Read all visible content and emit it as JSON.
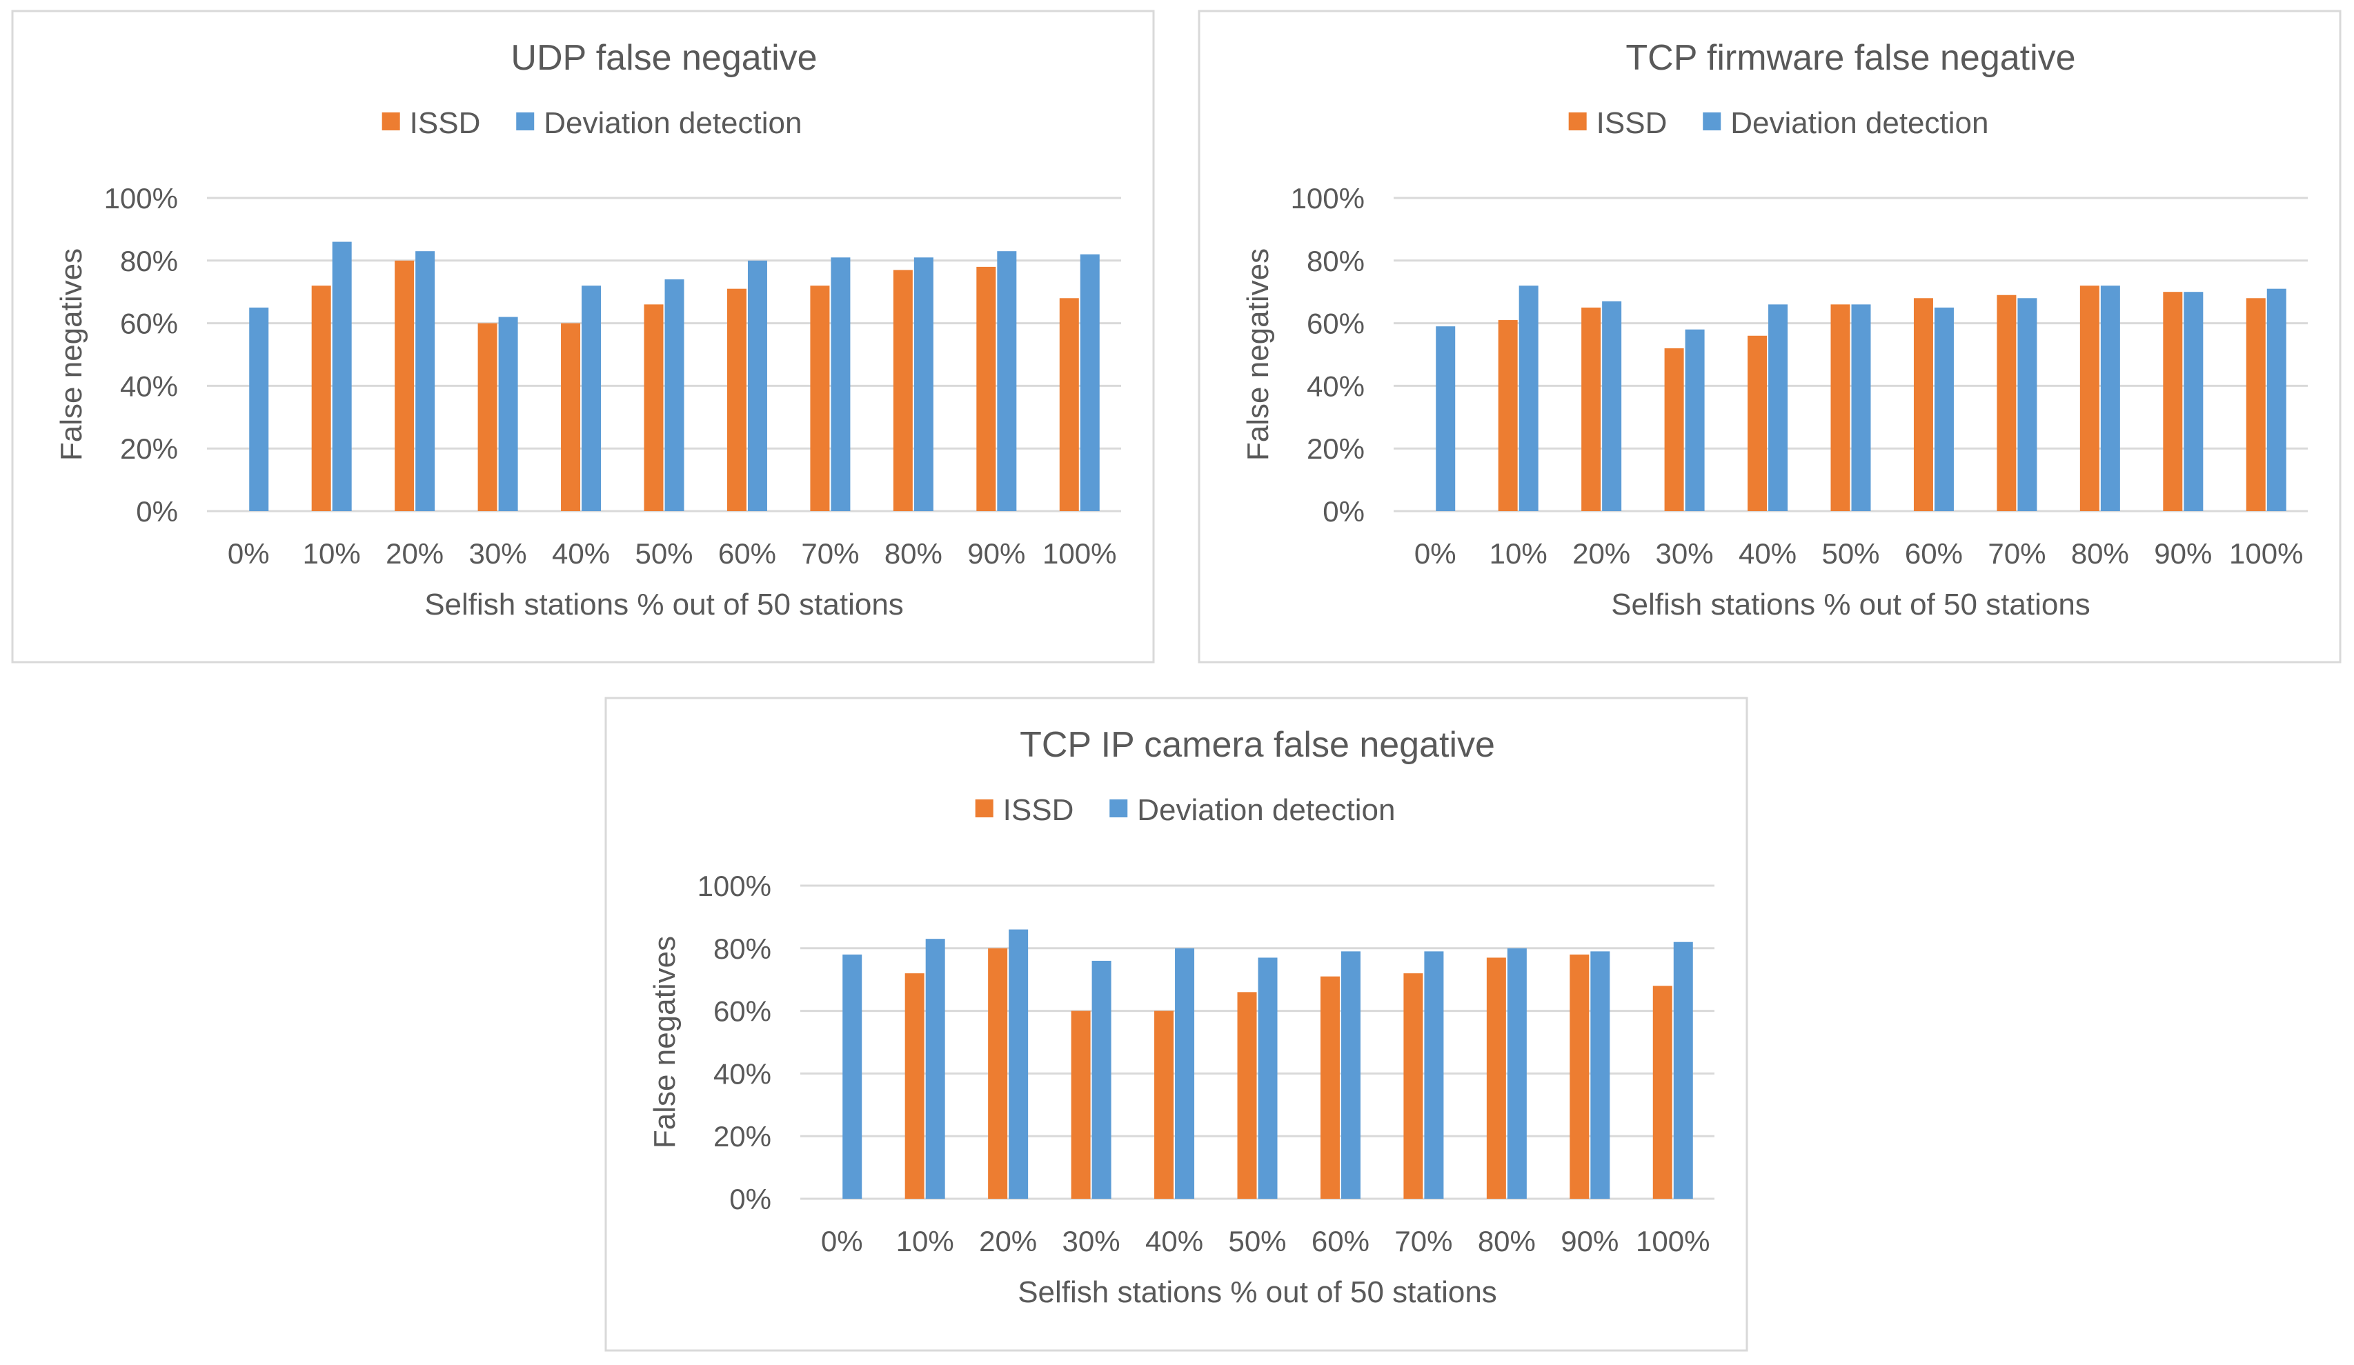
{
  "colors": {
    "issd": "#ED7D31",
    "deviation": "#5B9BD5",
    "grid": "#D9D9D9",
    "text": "#595959",
    "border": "#D9D9D9"
  },
  "chart_data": [
    {
      "type": "bar",
      "title": "UDP false negative",
      "xlabel": "Selfish stations % out of 50 stations",
      "ylabel": "False negatives",
      "categories": [
        "0%",
        "10%",
        "20%",
        "30%",
        "40%",
        "50%",
        "60%",
        "70%",
        "80%",
        "90%",
        "100%"
      ],
      "yticks": [
        "0%",
        "20%",
        "40%",
        "60%",
        "80%",
        "100%"
      ],
      "ylim": [
        0,
        100
      ],
      "legend": "top",
      "series": [
        {
          "name": "ISSD",
          "values": [
            0,
            72,
            80,
            60,
            60,
            66,
            71,
            72,
            77,
            78,
            68
          ]
        },
        {
          "name": "Deviation detection",
          "values": [
            65,
            86,
            83,
            62,
            72,
            74,
            80,
            81,
            81,
            83,
            82
          ]
        }
      ]
    },
    {
      "type": "bar",
      "title": "TCP firmware false negative",
      "xlabel": "Selfish stations % out of 50 stations",
      "ylabel": "False negatives",
      "categories": [
        "0%",
        "10%",
        "20%",
        "30%",
        "40%",
        "50%",
        "60%",
        "70%",
        "80%",
        "90%",
        "100%"
      ],
      "yticks": [
        "0%",
        "20%",
        "40%",
        "60%",
        "80%",
        "100%"
      ],
      "ylim": [
        0,
        100
      ],
      "legend": "top",
      "series": [
        {
          "name": "ISSD",
          "values": [
            0,
            61,
            65,
            52,
            56,
            66,
            68,
            69,
            72,
            70,
            68
          ]
        },
        {
          "name": "Deviation detection",
          "values": [
            59,
            72,
            67,
            58,
            66,
            66,
            65,
            68,
            72,
            70,
            71
          ]
        }
      ]
    },
    {
      "type": "bar",
      "title": "TCP IP camera false negative",
      "xlabel": "Selfish stations % out of 50 stations",
      "ylabel": "False negatives",
      "categories": [
        "0%",
        "10%",
        "20%",
        "30%",
        "40%",
        "50%",
        "60%",
        "70%",
        "80%",
        "90%",
        "100%"
      ],
      "yticks": [
        "0%",
        "20%",
        "40%",
        "60%",
        "80%",
        "100%"
      ],
      "ylim": [
        0,
        100
      ],
      "legend": "top",
      "series": [
        {
          "name": "ISSD",
          "values": [
            0,
            72,
            80,
            60,
            60,
            66,
            71,
            72,
            77,
            78,
            68
          ]
        },
        {
          "name": "Deviation detection",
          "values": [
            78,
            83,
            86,
            76,
            80,
            77,
            79,
            79,
            80,
            79,
            82
          ]
        }
      ]
    }
  ]
}
